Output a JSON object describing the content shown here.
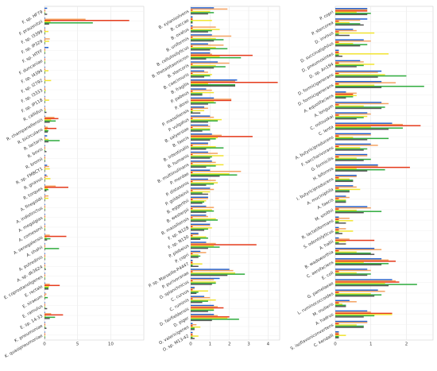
{
  "chart_data": [
    {
      "type": "bar",
      "orientation": "horizontal",
      "series_colors": [
        "#1f5fd0",
        "#f4a261",
        "#e63b1c",
        "#f2e531",
        "#2eab3d",
        "#555555"
      ],
      "xlim": [
        0,
        15
      ],
      "xticks": [
        0,
        5,
        10
      ],
      "grid": true,
      "categories": [
        "F. sp. HF79",
        "F. prausnitzii",
        "F. sp. I3399",
        "F. sp. IP329",
        "F. sp. HTFF",
        "F. duncaniae",
        "F. sp. I4394",
        "F. sp. I2792",
        "F. sp. I3333",
        "F. sp. IP118",
        "R. callidus",
        "R. champanellensis",
        "R. bicirculans",
        "R. lactaris",
        "R. bovis",
        "R. bromii",
        "R. sp. FMBCY1",
        "R. gnavus",
        "R. torques",
        "A. finegoldii",
        "A. indistinctus",
        "A. megalgias",
        "A. comesonii",
        "A. senegalensis",
        "A. shahii",
        "A. putredinis",
        "A. sp. dk3624",
        "E. coprostanoligenes",
        "E. rectale",
        "E. siraeum",
        "E. ramulus",
        "E. sp. 14-33",
        "K. pneumoniae",
        "K. quasipneumoniae"
      ],
      "series": [
        {
          "values": [
            0.4,
            0.1,
            0.1,
            0.1,
            0.6,
            0.1,
            0.1,
            0.1,
            0.1,
            0.1,
            0.1,
            0.1,
            0.1,
            0.4,
            0.1,
            0.1,
            0.4,
            0.3,
            0.1,
            0.1,
            0.1,
            0.1,
            0.1,
            0.1,
            0.1,
            0.1,
            0.1,
            0.1,
            0.1,
            0.1,
            0.1,
            0.1,
            0.1,
            0.1
          ]
        },
        {
          "values": [
            0.1,
            6.2,
            0.1,
            0.8,
            0.1,
            0.1,
            0.1,
            0.1,
            0.1,
            0.1,
            0.1,
            1.5,
            0.5,
            0.1,
            0.1,
            0.1,
            0.7,
            0.5,
            1.7,
            0.6,
            0.1,
            0.1,
            0.1,
            0.8,
            0.1,
            0.1,
            0.1,
            0.1,
            0.8,
            0.3,
            0.1,
            1.0,
            0.1,
            0.1
          ]
        },
        {
          "values": [
            0.1,
            12.8,
            0.1,
            0.1,
            0.1,
            0.1,
            0.1,
            0.1,
            0.1,
            0.1,
            0.1,
            2.1,
            1.8,
            0.1,
            0.1,
            0.1,
            0.1,
            0.1,
            3.6,
            0.1,
            0.1,
            0.1,
            0.1,
            3.3,
            0.1,
            0.1,
            0.1,
            0.1,
            2.3,
            0.1,
            0.1,
            2.8,
            0.1,
            0.1
          ]
        },
        {
          "values": [
            0.1,
            0.9,
            0.6,
            0.7,
            0.1,
            0.1,
            0.6,
            1.0,
            0.2,
            0.7,
            0.2,
            1.0,
            0.4,
            0.6,
            0.1,
            0.1,
            0.8,
            0.9,
            0.5,
            0.6,
            0.1,
            0.1,
            0.1,
            0.3,
            0.1,
            0.1,
            0.1,
            0.1,
            0.7,
            0.1,
            0.1,
            0.2,
            0.1,
            0.1
          ]
        },
        {
          "values": [
            0.1,
            7.3,
            0.1,
            0.1,
            0.1,
            0.1,
            0.1,
            0.1,
            0.1,
            0.1,
            0.1,
            1.7,
            0.6,
            2.3,
            0.1,
            0.1,
            0.1,
            0.1,
            0.6,
            0.1,
            0.1,
            0.1,
            0.1,
            0.9,
            2.2,
            0.1,
            0.1,
            0.1,
            0.6,
            0.5,
            0.1,
            1.6,
            0.1,
            0.1
          ]
        },
        {
          "values": [
            0.4,
            0.7,
            0.1,
            0.1,
            0.1,
            0.1,
            0.1,
            0.1,
            0.1,
            0.1,
            0.3,
            0.8,
            0.5,
            0.6,
            0.3,
            0.1,
            0.1,
            0.1,
            0.3,
            0.1,
            0.1,
            0.1,
            0.1,
            0.4,
            0.1,
            0.1,
            0.2,
            0.1,
            0.6,
            0.1,
            0.4,
            0.8,
            0.3,
            0.1
          ]
        }
      ]
    },
    {
      "type": "bar",
      "orientation": "horizontal",
      "series_colors": [
        "#1f5fd0",
        "#f4a261",
        "#e63b1c",
        "#f2e531",
        "#2eab3d",
        "#555555"
      ],
      "xlim": [
        0,
        4.6
      ],
      "xticks": [
        0,
        1,
        2,
        3,
        4
      ],
      "grid": true,
      "categories": [
        "B. xylanisolvens",
        "B. caccae",
        "B. ovatus",
        "B. uniformis",
        "B. cellulosilyticus",
        "B. thetaiotaomicron",
        "B. stercoris",
        "B. caecimuris",
        "B. fragilis",
        "P. pabeus",
        "P. dorei",
        "P. massiliensis",
        "P. vulgatus",
        "B. salyersiae",
        "B. faecis",
        "B. intestinalis",
        "B. humanis",
        "B. multiinulinans",
        "P. merdae",
        "P. distasonis",
        "P. goldsteinii",
        "B. eggerthii",
        "B. westerpii",
        "B. massiliensis",
        "F. sp. N128",
        "F. sp. N130",
        "P. plebeius",
        "P. copri",
        "P. sp. Marseille-P4447",
        "P. purivoranae",
        "O. splanchnicus",
        "C. curvus",
        "C. ruminis",
        "D. fairfieldensis",
        "D. piger",
        "O. valericigenes",
        "O. sp. M13-42"
      ],
      "series": [
        {
          "values": [
            1.2,
            0.1,
            0.1,
            1.1,
            0.9,
            1.0,
            1.4,
            0.7,
            2.4,
            0.8,
            1.2,
            0.7,
            1.0,
            0.9,
            1.1,
            0.9,
            0.9,
            1.1,
            1.0,
            0.9,
            1.0,
            0.9,
            0.8,
            0.8,
            1.0,
            0.4,
            0.8,
            0.5,
            0.1,
            2.0,
            1.5,
            0.2,
            0.7,
            1.2,
            1.2,
            0.1,
            0.1
          ]
        },
        {
          "values": [
            1.9,
            0.1,
            1.3,
            2.1,
            1.7,
            1.1,
            2.0,
            0.9,
            2.3,
            1.1,
            2.1,
            0.9,
            1.2,
            1.0,
            1.6,
            0.9,
            1.4,
            1.3,
            2.6,
            1.3,
            1.2,
            0.9,
            1.2,
            0.9,
            1.0,
            0.4,
            1.3,
            0.8,
            0.1,
            2.2,
            1.2,
            0.2,
            1.0,
            1.4,
            1.4,
            0.3,
            0.1
          ]
        },
        {
          "values": [
            0.1,
            0.1,
            0.1,
            0.1,
            0.1,
            3.2,
            0.1,
            0.1,
            4.5,
            0.1,
            2.1,
            0.1,
            0.1,
            0.1,
            3.2,
            0.1,
            0.1,
            0.1,
            0.1,
            0.1,
            0.1,
            0.1,
            0.1,
            0.1,
            0.1,
            0.1,
            3.4,
            0.1,
            0.1,
            0.1,
            0.1,
            0.1,
            0.1,
            1.7,
            2.0,
            0.1,
            0.1
          ]
        },
        {
          "values": [
            1.0,
            1.1,
            1.5,
            1.3,
            1.3,
            1.5,
            1.3,
            1.1,
            0.9,
            1.2,
            1.2,
            0.7,
            1.6,
            1.0,
            1.4,
            1.3,
            1.7,
            1.7,
            2.0,
            1.4,
            1.0,
            0.8,
            1.1,
            1.3,
            1.1,
            0.8,
            1.2,
            0.4,
            0.6,
            2.3,
            1.3,
            0.9,
            1.3,
            1.2,
            1.9,
            0.5,
            0.4
          ]
        },
        {
          "values": [
            1.2,
            0.1,
            1.1,
            1.7,
            1.9,
            2.6,
            1.8,
            1.0,
            2.3,
            0.6,
            1.3,
            0.1,
            1.4,
            1.0,
            1.3,
            1.7,
            1.1,
            1.3,
            2.4,
            1.2,
            0.6,
            0.7,
            1.2,
            1.4,
            0.9,
            0.9,
            1.5,
            0.5,
            0.1,
            2.8,
            1.3,
            0.4,
            0.9,
            1.2,
            2.5,
            0.2,
            0.1
          ]
        },
        {
          "values": [
            0.9,
            0.1,
            0.9,
            1.2,
            1.0,
            0.8,
            1.2,
            0.7,
            2.3,
            0.6,
            0.9,
            0.5,
            0.9,
            0.6,
            1.0,
            0.8,
            1.0,
            0.8,
            1.5,
            0.8,
            0.9,
            0.6,
            0.8,
            0.8,
            0.7,
            0.5,
            0.9,
            0.4,
            0.4,
            1.9,
            1.1,
            0.3,
            0.6,
            0.9,
            1.1,
            0.2,
            0.2
          ]
        }
      ]
    },
    {
      "type": "bar",
      "orientation": "horizontal",
      "series_colors": [
        "#1f5fd0",
        "#f4a261",
        "#e63b1c",
        "#f2e531",
        "#2eab3d",
        "#555555"
      ],
      "xlim": [
        0,
        2.75
      ],
      "xticks": [
        0,
        1,
        2
      ],
      "grid": true,
      "categories": [
        "P. copri",
        "P. stercorea",
        "D. invisus",
        "D. succinatiphilus",
        "D. pneumosintes",
        "D. sp. An194",
        "D. formicigenerans",
        "D. formicigenerans",
        "A. equolifaciens",
        "A. longum",
        "C. mitsuokai",
        "C. lenta",
        "A. butyriciproducens",
        "F. saccharivorans",
        "G. formicilis",
        "H. biformis",
        "I. butyriciproducens",
        "A. muciniphila",
        "A. faecis",
        "M. smithii",
        "R. lactatiformans",
        "S. odontolyticus",
        "A. hallii",
        "B. wadsworthia",
        "C. aerofaciens",
        "E. coli",
        "G. pamelaeae",
        "L. ruminococcoides",
        "M. mulieris",
        "A. hadrus",
        "S. isoflavoniconvertens",
        "C. kendalli"
      ],
      "series": [
        {
          "values": [
            0.9,
            0.9,
            0.5,
            0.8,
            0.1,
            0.7,
            1.3,
            1.3,
            0.3,
            1.3,
            0.9,
            1.6,
            1.0,
            1.0,
            0.9,
            1.2,
            0.6,
            0.5,
            0.3,
            0.9,
            0.1,
            0.1,
            0.1,
            1.1,
            1.3,
            0.9,
            1.6,
            1.2,
            0.4,
            0.9,
            0.9,
            0.1
          ]
        },
        {
          "values": [
            0.9,
            0.7,
            0.6,
            1.0,
            0.1,
            0.8,
            1.2,
            1.7,
            0.6,
            1.5,
            1.0,
            1.9,
            1.0,
            1.2,
            0.9,
            1.2,
            0.6,
            0.6,
            0.4,
            1.0,
            0.4,
            0.3,
            0.4,
            1.3,
            1.5,
            1.0,
            1.7,
            1.4,
            0.6,
            1.0,
            0.9,
            0.1
          ]
        },
        {
          "values": [
            0.9,
            0.1,
            0.1,
            0.1,
            0.1,
            0.1,
            0.1,
            0.1,
            0.5,
            0.1,
            0.1,
            2.4,
            0.1,
            0.1,
            0.1,
            2.1,
            0.1,
            0.1,
            0.1,
            0.1,
            0.1,
            0.1,
            1.1,
            0.1,
            1.7,
            0.1,
            1.8,
            0.1,
            0.1,
            1.6,
            0.1,
            0.1
          ]
        },
        {
          "values": [
            0.6,
            0.4,
            1.1,
            0.5,
            1.5,
            1.1,
            1.4,
            1.1,
            0.6,
            0.8,
            0.9,
            1.0,
            0.5,
            0.7,
            0.6,
            0.6,
            0.4,
            0.7,
            0.3,
            0.6,
            0.5,
            0.5,
            0.3,
            0.6,
            0.8,
            0.6,
            1.4,
            1.0,
            0.2,
            1.6,
            0.6,
            0.3
          ]
        },
        {
          "values": [
            1.0,
            0.7,
            0.1,
            0.9,
            0.1,
            0.8,
            2.0,
            2.5,
            0.5,
            1.4,
            0.8,
            1.9,
            1.5,
            0.9,
            1.0,
            1.4,
            0.5,
            0.4,
            0.3,
            1.3,
            0.1,
            0.1,
            0.1,
            1.0,
            1.5,
            1.0,
            2.3,
            1.3,
            0.3,
            1.1,
            0.8,
            0.1
          ]
        },
        {
          "values": [
            0.9,
            0.8,
            0.4,
            0.7,
            0.2,
            0.6,
            1.2,
            1.3,
            0.3,
            1.3,
            0.6,
            1.5,
            0.9,
            0.8,
            0.8,
            0.9,
            0.5,
            0.4,
            0.3,
            0.8,
            0.3,
            0.2,
            0.3,
            1.1,
            1.3,
            0.9,
            1.5,
            1.1,
            0.3,
            0.8,
            0.8,
            0.1
          ]
        }
      ]
    }
  ]
}
